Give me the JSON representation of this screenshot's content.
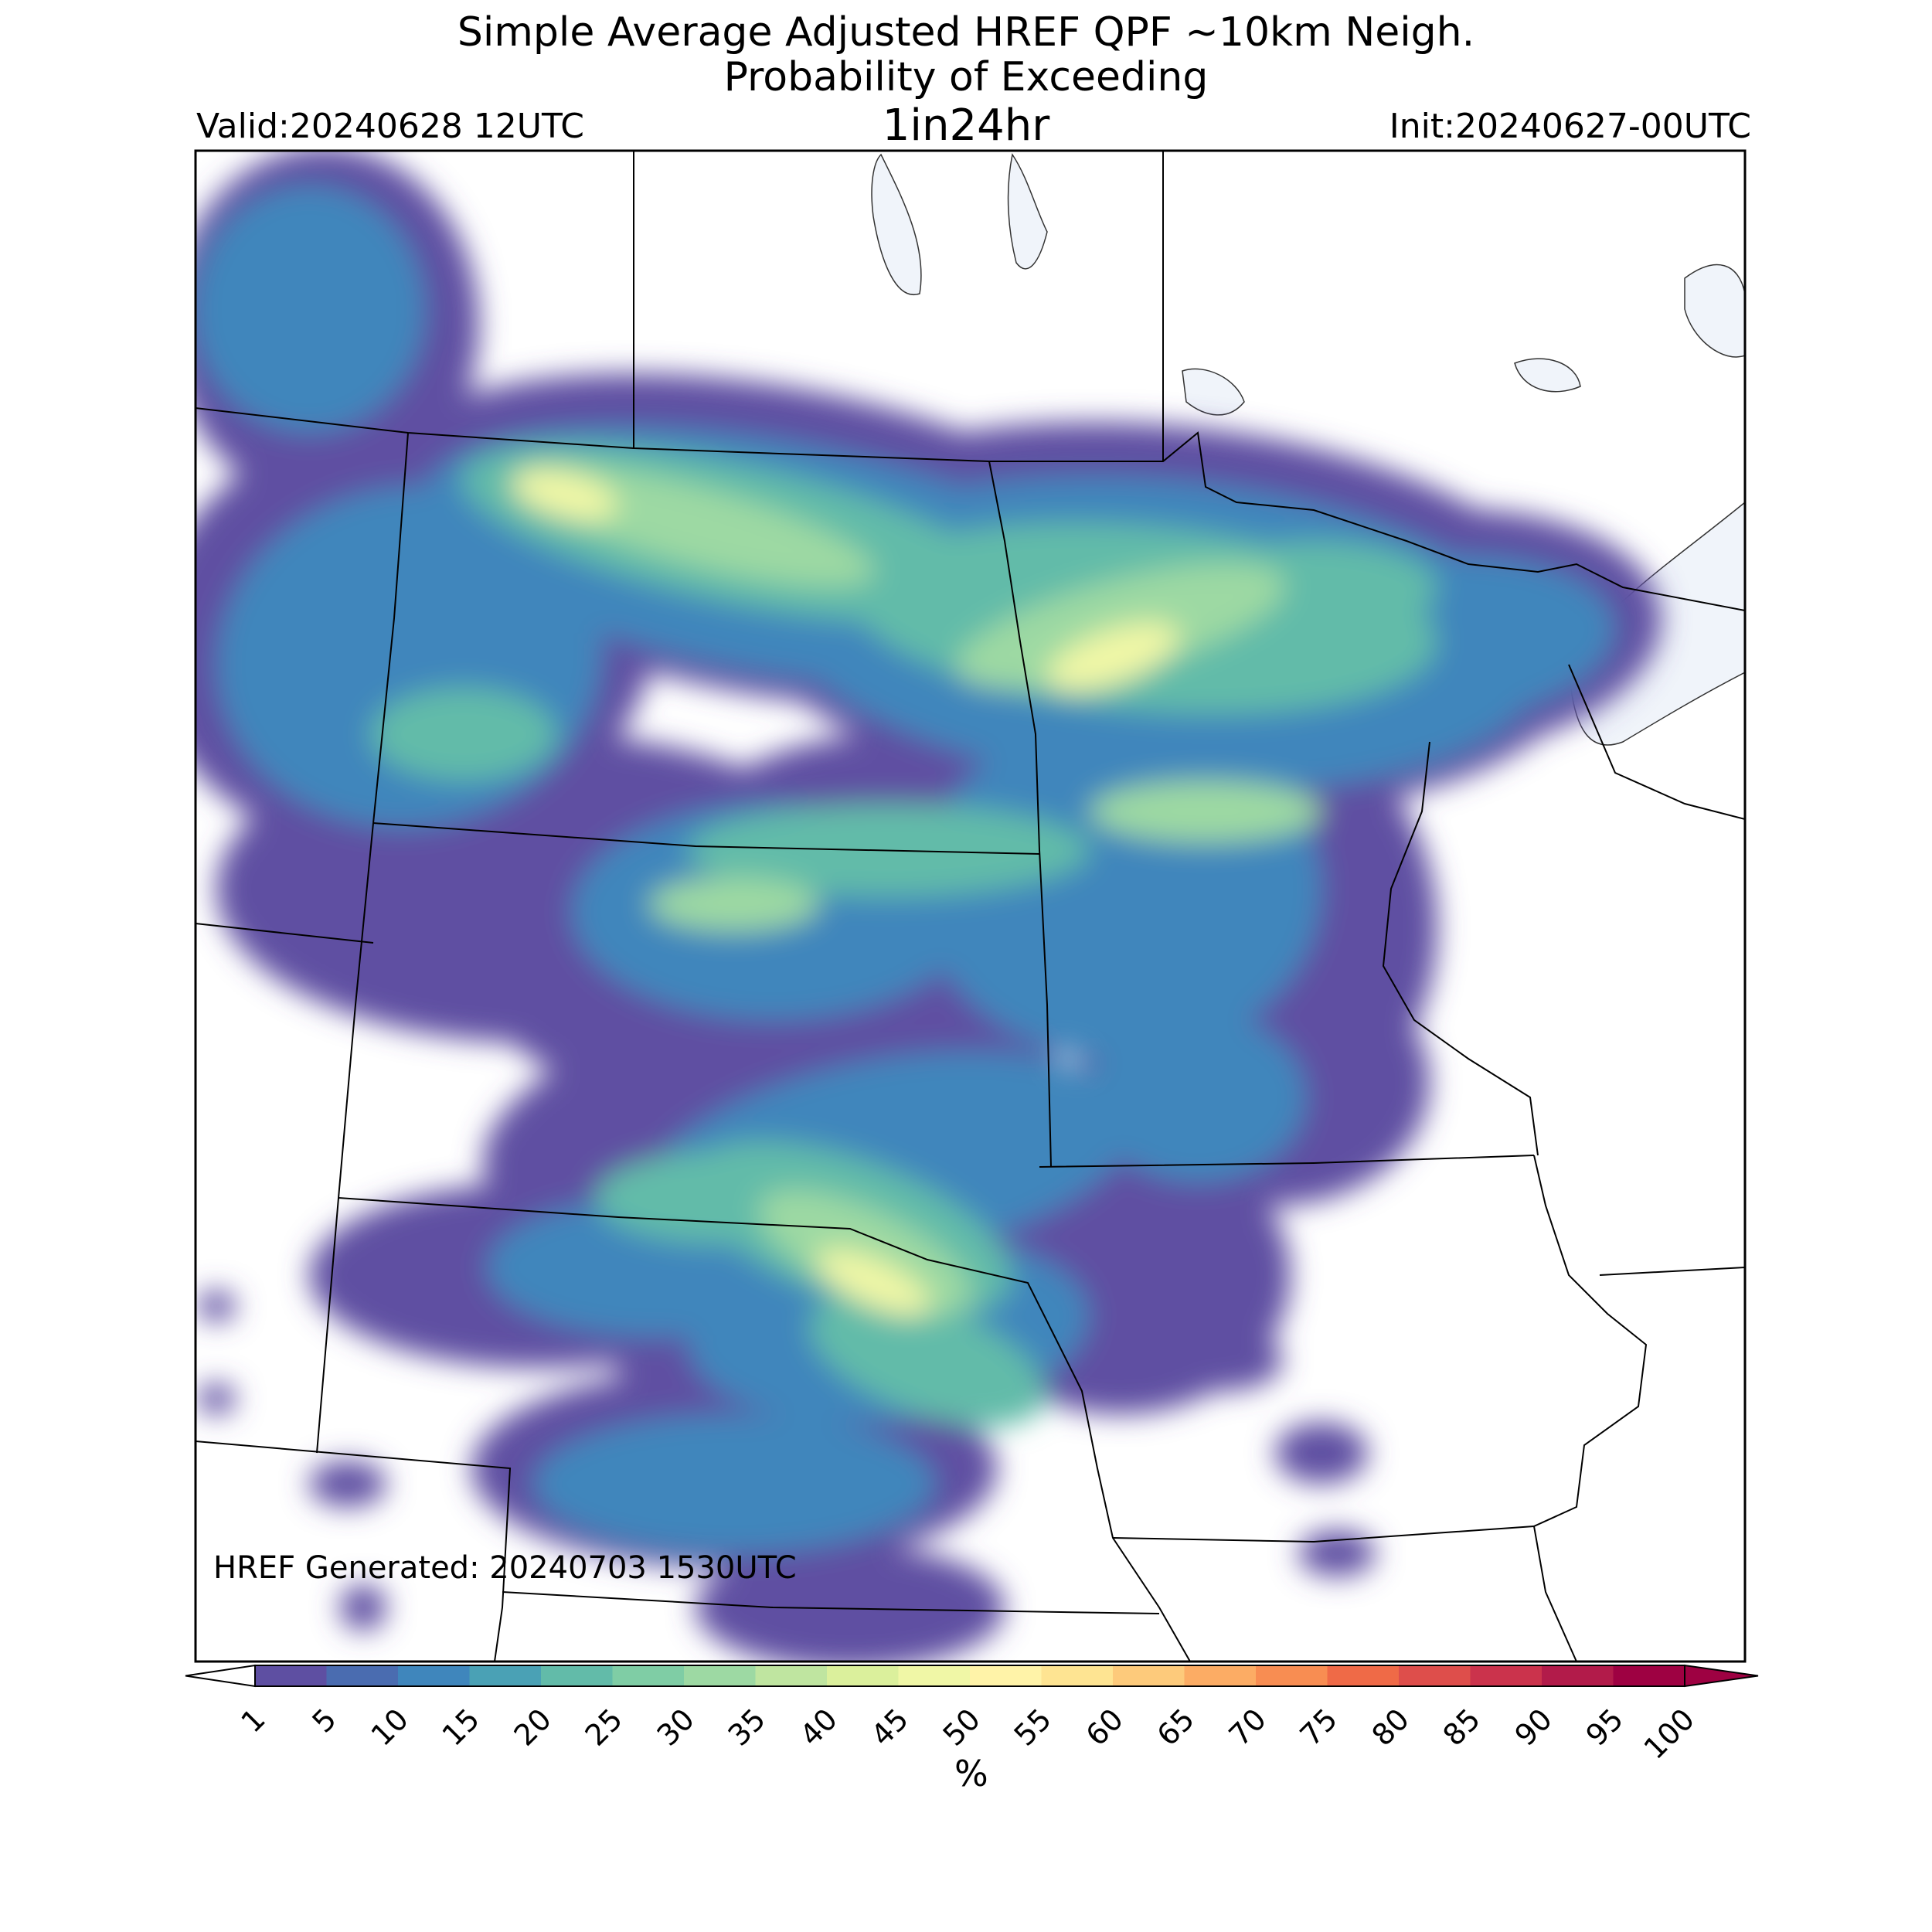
{
  "header": {
    "title_line1": "Simple Average Adjusted HREF QPF ~10km Neigh.",
    "title_line2": "Probability of Exceeding",
    "title_line3": "1in24hr",
    "valid": "Valid:20240628 12UTC",
    "init": "Init:20240627-00UTC"
  },
  "map": {
    "annotation": "HREF Generated: 20240703 1530UTC",
    "water_color": "#f0f4fa",
    "border_color": "#000000"
  },
  "colorbar": {
    "unit": "%",
    "ticks": [
      "1",
      "5",
      "10",
      "15",
      "20",
      "25",
      "30",
      "35",
      "40",
      "45",
      "50",
      "55",
      "60",
      "65",
      "70",
      "75",
      "80",
      "85",
      "90",
      "95",
      "100"
    ],
    "colors": [
      "#5e4fa2",
      "#4a6cb0",
      "#3f86bc",
      "#4aa1b5",
      "#62bba9",
      "#7fcda5",
      "#9dd9a3",
      "#bfe5a0",
      "#dbf09c",
      "#f0f7a6",
      "#fff3a8",
      "#fee492",
      "#fdca7b",
      "#fcac64",
      "#f88d52",
      "#ef6a47",
      "#de4e4b",
      "#cb334c",
      "#b21b4a",
      "#9e0142"
    ]
  }
}
